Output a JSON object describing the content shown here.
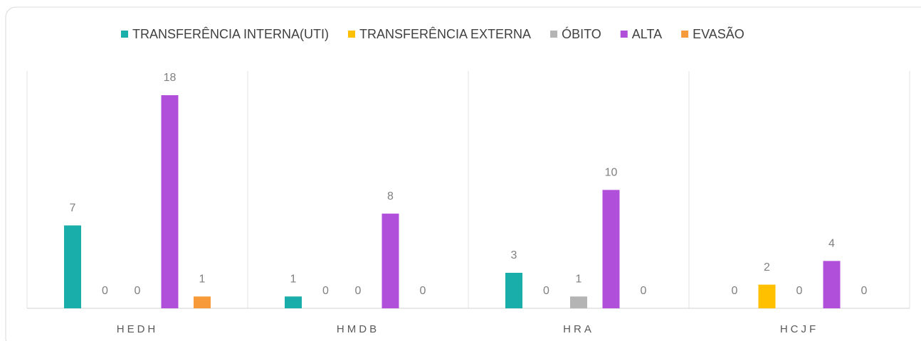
{
  "chart_data": {
    "type": "bar",
    "categories": [
      "HEDH",
      "HMDB",
      "HRA",
      "HCJF"
    ],
    "series": [
      {
        "name": "TRANSFERÊNCIA INTERNA(UTI)",
        "color": "#1aaeaa",
        "values": [
          7,
          1,
          3,
          0
        ]
      },
      {
        "name": "TRANSFERÊNCIA EXTERNA",
        "color": "#ffc000",
        "values": [
          0,
          0,
          0,
          2
        ]
      },
      {
        "name": "ÓBITO",
        "color": "#b4b4b4",
        "values": [
          0,
          0,
          1,
          0
        ]
      },
      {
        "name": "ALTA",
        "color": "#b04fd9",
        "values": [
          18,
          8,
          10,
          4
        ]
      },
      {
        "name": "EVASÃO",
        "color": "#f79a3a",
        "values": [
          1,
          0,
          0,
          0
        ]
      }
    ],
    "legend": "top",
    "grid": false
  }
}
